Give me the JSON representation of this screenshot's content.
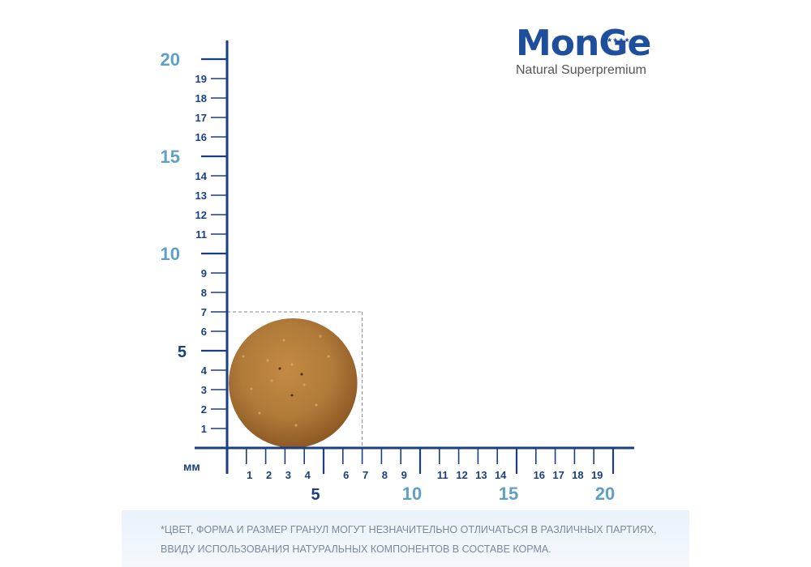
{
  "brand": {
    "name": "MonGe",
    "stars": "★★★★★",
    "tagline": "Natural Superpremium"
  },
  "ruler": {
    "unit_label": "мм",
    "vertical_minor_ticks": [
      "1",
      "2",
      "3",
      "4",
      "6",
      "7",
      "8",
      "9",
      "11",
      "12",
      "13",
      "14",
      "16",
      "17",
      "18",
      "19"
    ],
    "vertical_major_ticks": [
      "5",
      "10",
      "15",
      "20"
    ],
    "horizontal_minor_ticks": [
      "1",
      "2",
      "3",
      "4",
      "6",
      "7",
      "8",
      "9",
      "11",
      "12",
      "13",
      "14",
      "16",
      "17",
      "18",
      "19"
    ],
    "horizontal_major_ticks": [
      "5",
      "10",
      "15",
      "20"
    ]
  },
  "kibble": {
    "width_mm": 7,
    "height_mm": 7
  },
  "colors": {
    "axis": "#1a3f82",
    "minor_tick_label": "#1a3f82",
    "major_tick_label": "#5fa0c8",
    "kibble": "#b07a3a",
    "guide": "#888888"
  },
  "disclaimer": {
    "line1": "*ЦВЕТ, ФОРМА И РАЗМЕР ГРАНУЛ МОГУТ НЕЗНАЧИТЕЛЬНО ОТЛИЧАТЬСЯ В РАЗЛИЧНЫХ ПАРТИЯХ,",
    "line2": "ВВИДУ ИСПОЛЬЗОВАНИЯ НАТУРАЛЬНЫХ КОМПОНЕНТОВ В СОСТАВЕ КОРМА."
  }
}
